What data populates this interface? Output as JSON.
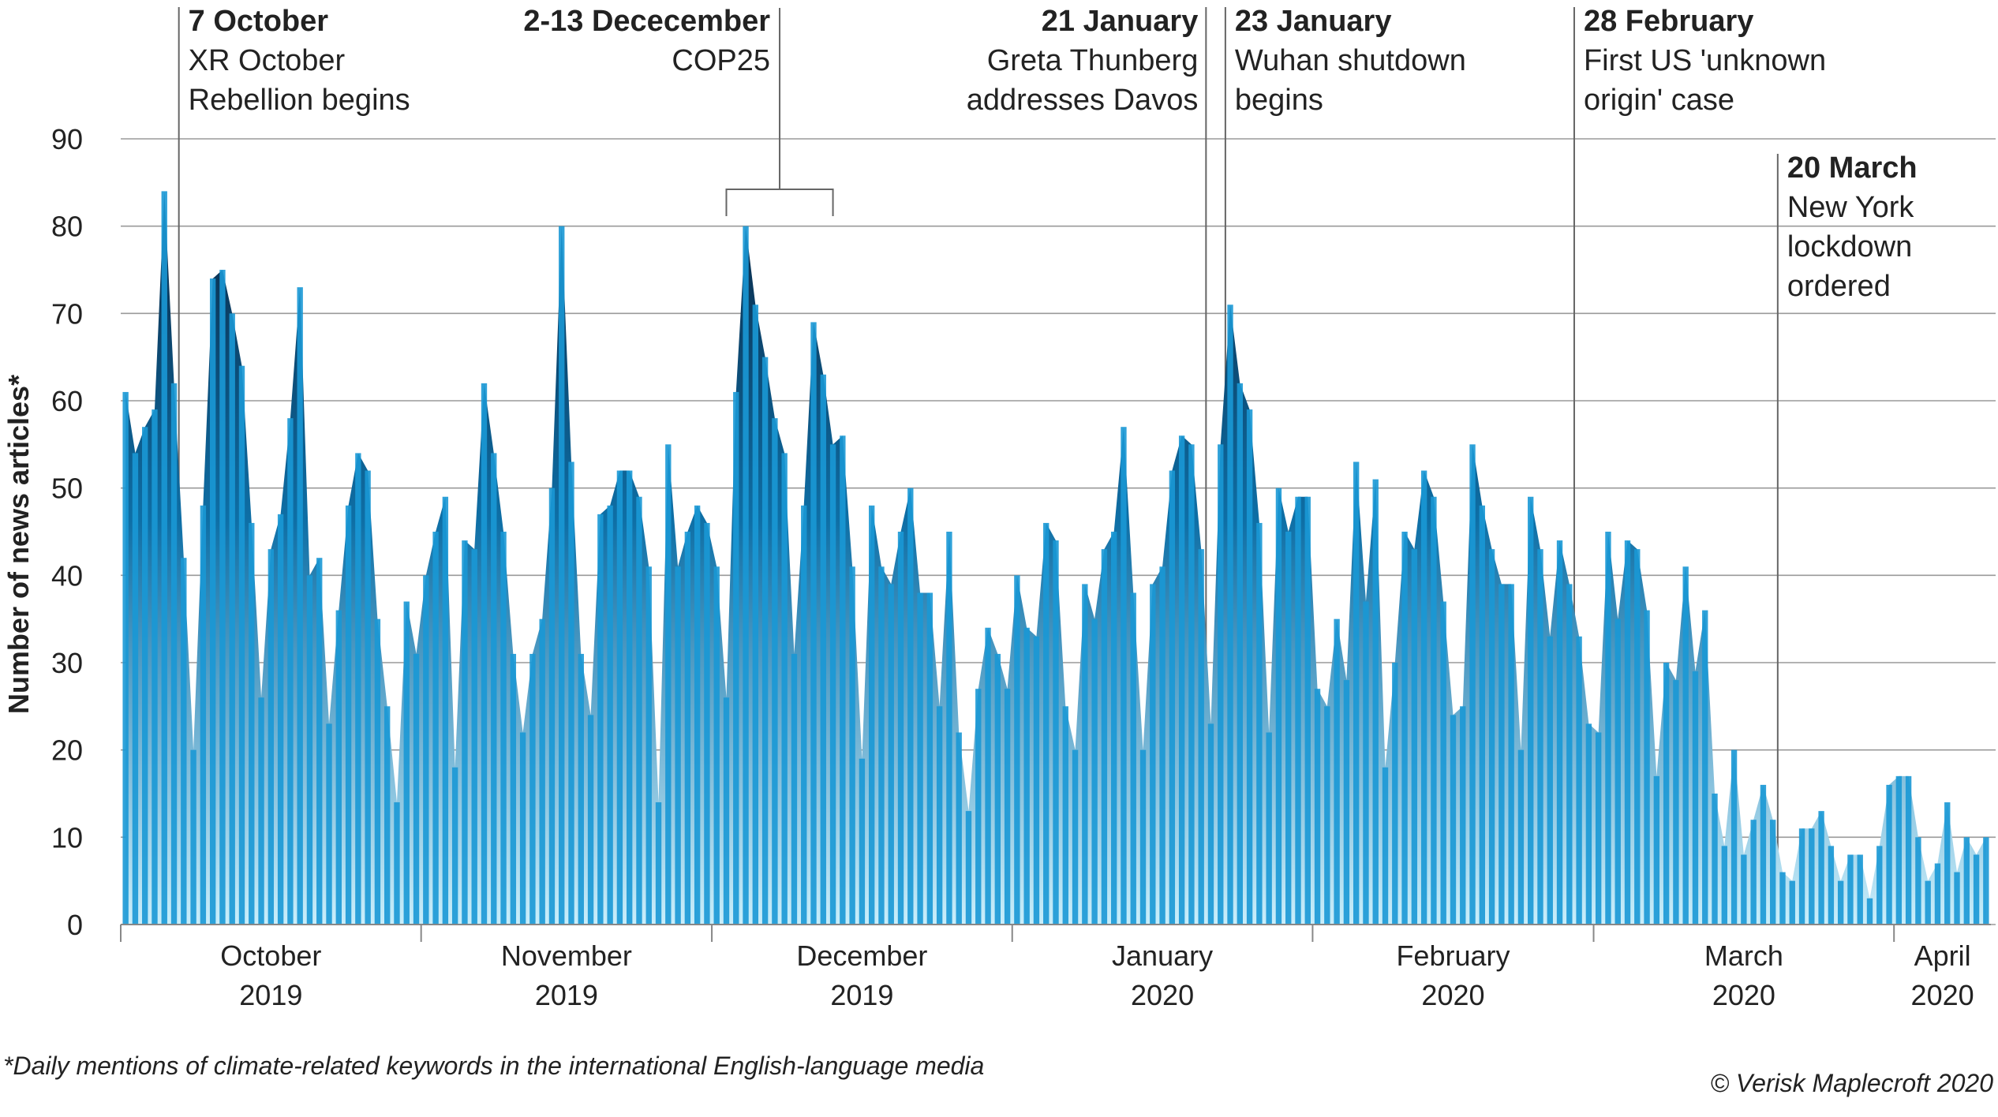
{
  "chart_data": {
    "type": "area-bar",
    "y_label": "Number of news articles*",
    "footnote": "*Daily mentions of climate-related keywords in the international English-language media",
    "credit": "© Verisk Maplecroft 2020",
    "ylim": [
      0,
      90
    ],
    "yticks": [
      0,
      10,
      20,
      30,
      40,
      50,
      60,
      70,
      80,
      90
    ],
    "grid": true,
    "months": [
      {
        "name": "October",
        "year": "2019",
        "days": 31
      },
      {
        "name": "November",
        "year": "2019",
        "days": 30
      },
      {
        "name": "December",
        "year": "2019",
        "days": 31
      },
      {
        "name": "January",
        "year": "2020",
        "days": 31
      },
      {
        "name": "February",
        "year": "2020",
        "days": 29
      },
      {
        "name": "March",
        "year": "2020",
        "days": 31
      },
      {
        "name": "April",
        "year": "2020",
        "days": 10
      }
    ],
    "values": [
      61,
      54,
      57,
      59,
      84,
      62,
      42,
      20,
      48,
      74,
      75,
      70,
      64,
      46,
      26,
      43,
      47,
      58,
      73,
      40,
      42,
      23,
      36,
      48,
      54,
      52,
      35,
      25,
      14,
      37,
      31,
      40,
      45,
      49,
      18,
      44,
      43,
      62,
      54,
      45,
      31,
      22,
      31,
      35,
      50,
      80,
      53,
      31,
      24,
      47,
      48,
      52,
      52,
      49,
      41,
      14,
      55,
      41,
      45,
      48,
      46,
      41,
      26,
      61,
      80,
      71,
      65,
      58,
      54,
      31,
      48,
      69,
      63,
      55,
      56,
      41,
      19,
      48,
      41,
      39,
      45,
      50,
      38,
      38,
      25,
      45,
      22,
      13,
      27,
      34,
      31,
      27,
      40,
      34,
      33,
      46,
      44,
      25,
      20,
      39,
      35,
      43,
      45,
      57,
      38,
      20,
      39,
      41,
      52,
      56,
      55,
      43,
      23,
      55,
      71,
      62,
      59,
      46,
      22,
      50,
      45,
      49,
      49,
      27,
      25,
      35,
      28,
      53,
      37,
      51,
      18,
      30,
      45,
      43,
      52,
      49,
      37,
      24,
      25,
      55,
      48,
      43,
      39,
      39,
      20,
      49,
      43,
      33,
      44,
      39,
      33,
      23,
      22,
      45,
      35,
      44,
      43,
      36,
      17,
      30,
      28,
      41,
      29,
      36,
      15,
      9,
      20,
      8,
      12,
      16,
      12,
      6,
      5,
      11,
      11,
      13,
      9,
      5,
      8,
      8,
      3,
      9,
      16,
      17,
      17,
      10,
      5,
      7,
      14,
      6,
      10,
      8,
      10
    ],
    "bar_color": "#1a98d5",
    "annotations": [
      {
        "title": "7 October",
        "lines": [
          "XR October",
          "Rebellion begins"
        ],
        "x": 6,
        "align": "left"
      },
      {
        "title": "2-13 Dececember",
        "lines": [
          "COP25"
        ],
        "x": 62,
        "x_end": 73,
        "align": "right"
      },
      {
        "title": "21 January",
        "lines": [
          "Greta Thunberg",
          "addresses Davos"
        ],
        "x": 112,
        "align": "right"
      },
      {
        "title": "23 January",
        "lines": [
          "Wuhan shutdown",
          "begins"
        ],
        "x": 114,
        "align": "left"
      },
      {
        "title": "28 February",
        "lines": [
          "First US 'unknown",
          "origin' case"
        ],
        "x": 150,
        "align": "left"
      },
      {
        "title": "20 March",
        "lines": [
          "New York",
          "lockdown",
          "ordered"
        ],
        "x": 171,
        "align": "left"
      }
    ]
  }
}
